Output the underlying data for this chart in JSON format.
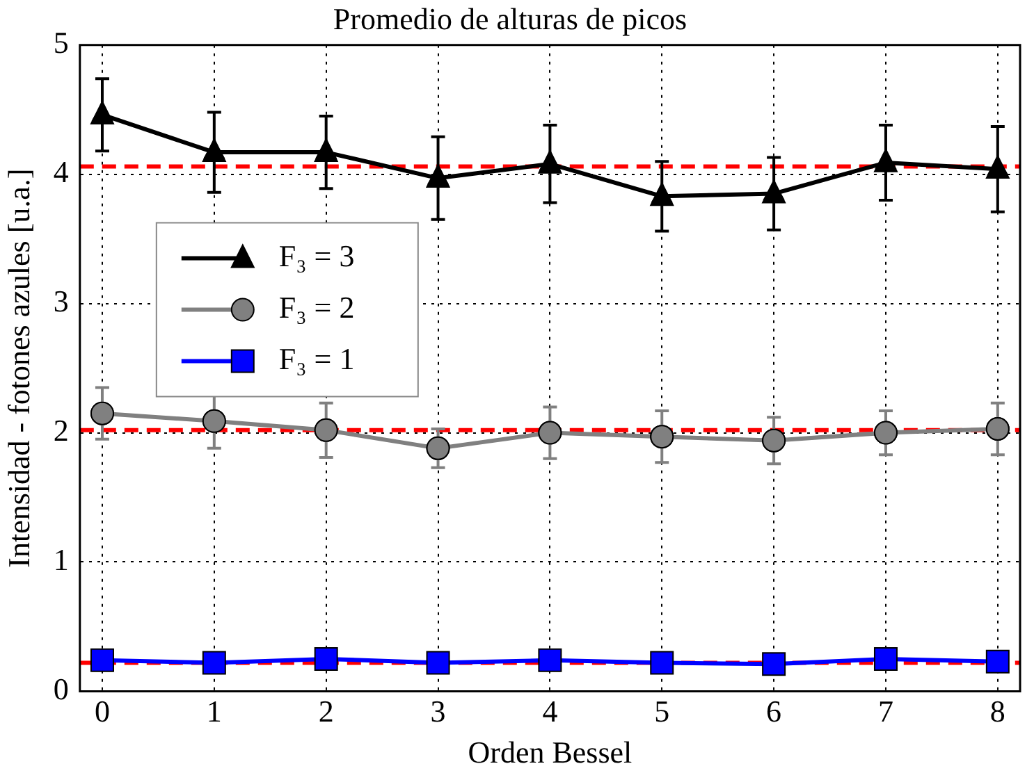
{
  "chart_data": {
    "type": "line",
    "title": "Promedio de alturas de picos",
    "xlabel": "Orden Bessel",
    "ylabel": "Intensidad - fotones azules [u.a.]",
    "x": [
      0,
      1,
      2,
      3,
      4,
      5,
      6,
      7,
      8
    ],
    "series": [
      {
        "name": "F₃ = 3",
        "color": "#000000",
        "marker": "triangle",
        "values": [
          4.46,
          4.17,
          4.17,
          3.97,
          4.08,
          3.83,
          3.85,
          4.09,
          4.04
        ],
        "errors": [
          0.28,
          0.31,
          0.28,
          0.32,
          0.3,
          0.27,
          0.28,
          0.29,
          0.33
        ]
      },
      {
        "name": "F₃ = 2",
        "color": "#808080",
        "marker": "circle",
        "values": [
          2.15,
          2.09,
          2.02,
          1.88,
          2.0,
          1.97,
          1.94,
          2.0,
          2.03
        ],
        "errors": [
          0.2,
          0.21,
          0.21,
          0.15,
          0.2,
          0.2,
          0.18,
          0.17,
          0.2
        ]
      },
      {
        "name": "F₃ = 1",
        "color": "#0000ff",
        "marker": "square",
        "values": [
          0.24,
          0.22,
          0.25,
          0.22,
          0.24,
          0.22,
          0.21,
          0.25,
          0.23
        ],
        "errors": [
          0.02,
          0.02,
          0.02,
          0.02,
          0.02,
          0.02,
          0.02,
          0.02,
          0.02
        ]
      }
    ],
    "ref_lines": [
      {
        "axis": "y",
        "value": 4.06,
        "color": "#ff0000",
        "line_style": "dashed"
      },
      {
        "axis": "y",
        "value": 2.02,
        "color": "#ff0000",
        "line_style": "dashed"
      },
      {
        "axis": "y",
        "value": 0.22,
        "color": "#ff0000",
        "line_style": "dashed"
      }
    ],
    "xlim": [
      -0.2,
      8.2
    ],
    "xticks": [
      0,
      1,
      2,
      3,
      4,
      5,
      6,
      7,
      8
    ],
    "ylim": [
      0,
      5
    ],
    "yticks": [
      0,
      1,
      2,
      3,
      4,
      5
    ],
    "grid": true,
    "legend": "center left",
    "line_style": "solid"
  }
}
